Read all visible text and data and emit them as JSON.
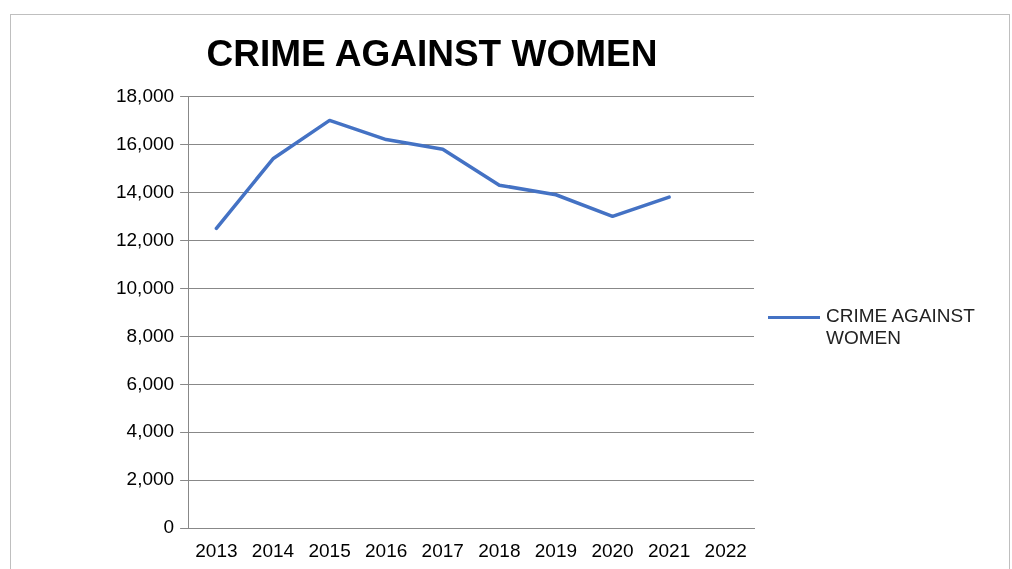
{
  "chart_data": {
    "type": "line",
    "title": "CRIME AGAINST WOMEN",
    "categories": [
      "2013",
      "2014",
      "2015",
      "2016",
      "2017",
      "2018",
      "2019",
      "2020",
      "2021",
      "2022"
    ],
    "series": [
      {
        "name": "CRIME AGAINST WOMEN",
        "color": "#4472c4",
        "values": [
          12500,
          15400,
          17000,
          16200,
          15800,
          14300,
          13900,
          13000,
          13800,
          null
        ]
      }
    ],
    "ylim": [
      0,
      18000
    ],
    "yticks": [
      0,
      {
        "value": 2000,
        "label": "2,000"
      },
      {
        "value": 4000,
        "label": "4,000"
      },
      {
        "value": 6000,
        "label": "6,000"
      },
      {
        "value": 8000,
        "label": "8,000"
      },
      {
        "value": 10000,
        "label": "10,000"
      },
      {
        "value": 12000,
        "label": "12,000"
      },
      {
        "value": 14000,
        "label": "14,000"
      },
      {
        "value": 16000,
        "label": "16,000"
      },
      {
        "value": 18000,
        "label": "18,000"
      }
    ],
    "grid": "y",
    "legend": "right",
    "marker": "none"
  }
}
